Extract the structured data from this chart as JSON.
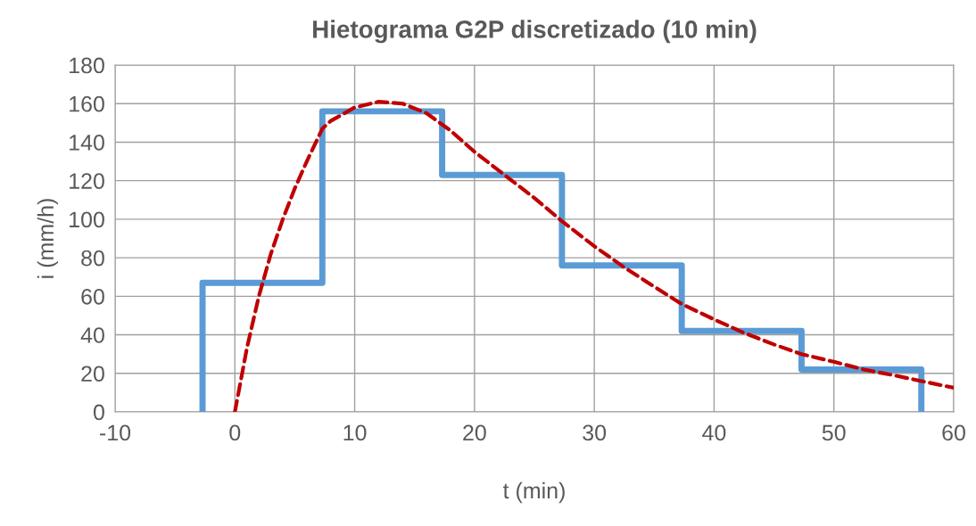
{
  "chart_data": {
    "type": "line",
    "title": "Hietograma G2P discretizado (10 min)",
    "xlabel": "t (min)",
    "ylabel": "i (mm/h)",
    "series": [
      {
        "color": "#5b9bd5",
        "line_style": "solid",
        "x": [
          -2.7,
          -2.7,
          7.3,
          7.3,
          17.3,
          17.3,
          27.3,
          27.3,
          37.3,
          37.3,
          47.3,
          47.3,
          57.3,
          57.3
        ],
        "values": [
          0,
          67,
          67,
          156,
          156,
          123,
          123,
          76,
          76,
          42,
          42,
          22,
          22,
          0
        ]
      },
      {
        "color": "#c00000",
        "line_style": "dashed",
        "x": [
          0,
          1,
          2,
          3,
          4,
          5,
          6,
          7.3,
          8,
          10,
          12,
          14,
          16,
          18,
          20,
          22.5,
          25,
          27.3,
          30,
          32.5,
          35,
          37.3,
          40,
          42.5,
          45,
          47.3,
          50,
          52.5,
          55,
          57.3,
          60
        ],
        "values": [
          0,
          33,
          60,
          82,
          100,
          116,
          130,
          147,
          151,
          158,
          161,
          160,
          155,
          146,
          135,
          123,
          111,
          99,
          86,
          75,
          65,
          56,
          48,
          41,
          35,
          30,
          26,
          22,
          19,
          16,
          12.5
        ]
      }
    ],
    "xlim": [
      -10,
      60
    ],
    "xticks": [
      -10,
      0,
      10,
      20,
      30,
      40,
      50,
      60
    ],
    "ylim": [
      0,
      180
    ],
    "yticks": [
      0,
      20,
      40,
      60,
      80,
      100,
      120,
      140,
      160,
      180
    ],
    "grid": true,
    "marker": "none"
  }
}
